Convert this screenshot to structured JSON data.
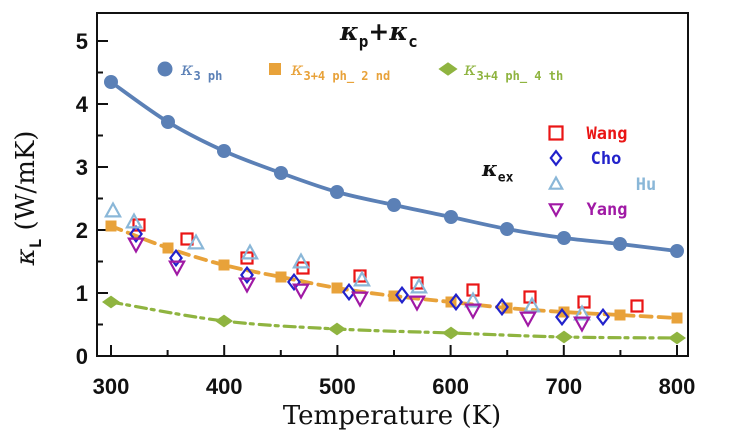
{
  "figure": {
    "background": "#ffffff",
    "axis_color": "#111111"
  },
  "chart_data": {
    "type": "line",
    "title_parts": [
      [
        "κ",
        "k"
      ],
      [
        "p",
        "s"
      ],
      [
        "+",
        "p"
      ],
      [
        "κ",
        "k"
      ],
      [
        "c",
        "s"
      ]
    ],
    "xlabel": "Temperature (K)",
    "ylabel_parts": [
      [
        "κ",
        "k"
      ],
      [
        "L",
        "s"
      ],
      [
        " (W/mK)",
        "p"
      ]
    ],
    "xlim": [
      288,
      810
    ],
    "ylim": [
      0,
      5.45
    ],
    "x_ticks_major": [
      300,
      400,
      500,
      600,
      700,
      800
    ],
    "x_ticks_minor": [
      350,
      450,
      550,
      650,
      750
    ],
    "x_tick_labels": [
      "300",
      "400",
      "500",
      "600",
      "700",
      "800"
    ],
    "y_ticks_major": [
      0,
      1,
      2,
      3,
      4,
      5
    ],
    "y_ticks_minor": [
      0.5,
      1.5,
      2.5,
      3.5,
      4.5
    ],
    "y_tick_labels": [
      "0",
      "1",
      "2",
      "3",
      "4",
      "5"
    ],
    "grid": false,
    "series": [
      {
        "name": "kappa_3ph",
        "legend_parts": [
          [
            "κ",
            "k"
          ],
          [
            "3 ph",
            "s"
          ]
        ],
        "color": "#5b80b6",
        "line_style": "solid",
        "marker": "circle",
        "x": [
          300,
          350,
          400,
          450,
          500,
          550,
          600,
          650,
          700,
          750,
          800
        ],
        "y": [
          4.35,
          3.71,
          3.26,
          2.9,
          2.61,
          2.39,
          2.2,
          2.02,
          1.88,
          1.77,
          1.67
        ]
      },
      {
        "name": "kappa_3+4ph_2nd",
        "legend_parts": [
          [
            "κ",
            "k"
          ],
          [
            "3+4 ph_ 2 nd",
            "s"
          ]
        ],
        "color": "#e8a23a",
        "line_style": "dashed",
        "marker": "square",
        "x": [
          300,
          350,
          400,
          450,
          500,
          550,
          600,
          650,
          700,
          750,
          800
        ],
        "y": [
          2.07,
          1.72,
          1.45,
          1.25,
          1.08,
          0.95,
          0.85,
          0.76,
          0.7,
          0.65,
          0.61
        ]
      },
      {
        "name": "kappa_3+4ph_4th",
        "legend_parts": [
          [
            "κ",
            "k"
          ],
          [
            "3+4 ph_ 4 th",
            "s"
          ]
        ],
        "color": "#8fb440",
        "line_style": "dashdot",
        "marker": "diamond-wide",
        "x": [
          300,
          400,
          500,
          600,
          700,
          800
        ],
        "y": [
          0.85,
          0.56,
          0.43,
          0.36,
          0.3,
          0.28
        ]
      }
    ],
    "experimental_label_parts": [
      [
        "κ",
        "k"
      ],
      [
        "ex",
        "s"
      ]
    ],
    "experimental": [
      {
        "name": "Wang",
        "color": "#ea1515",
        "marker": "square",
        "x": [
          325,
          367,
          420,
          470,
          520,
          570,
          620,
          670,
          718,
          765
        ],
        "y": [
          2.08,
          1.85,
          1.55,
          1.4,
          1.27,
          1.16,
          1.04,
          0.94,
          0.86,
          0.79
        ]
      },
      {
        "name": "Cho",
        "color": "#2222cb",
        "marker": "diamond",
        "x": [
          322,
          357,
          420,
          462,
          510,
          557,
          605,
          645,
          698,
          735
        ],
        "y": [
          1.93,
          1.56,
          1.28,
          1.18,
          1.02,
          0.97,
          0.86,
          0.77,
          0.62,
          0.62
        ]
      },
      {
        "name": "Hu",
        "color": "#8ab7d8",
        "marker": "triangle-up",
        "x": [
          302,
          320,
          375,
          423,
          468,
          522,
          572,
          620,
          672,
          716
        ],
        "y": [
          2.3,
          2.12,
          1.8,
          1.64,
          1.5,
          1.21,
          1.1,
          0.87,
          0.8,
          0.66
        ]
      },
      {
        "name": "Yang",
        "color": "#a019a5",
        "marker": "triangle-down",
        "x": [
          322,
          358,
          420,
          468,
          520,
          570,
          620,
          668,
          716
        ],
        "y": [
          1.77,
          1.41,
          1.15,
          1.05,
          0.92,
          0.85,
          0.73,
          0.6,
          0.53
        ]
      }
    ],
    "legend_position": "top-inside",
    "experimental_legend_position": "right-inside"
  }
}
